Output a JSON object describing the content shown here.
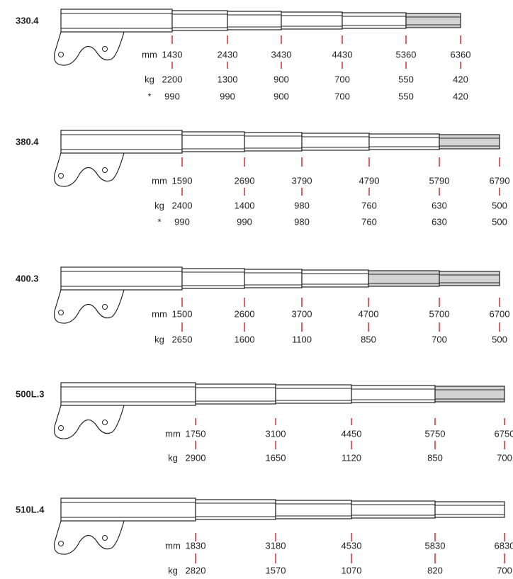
{
  "diagrams": [
    {
      "model": "330.4",
      "units": [
        "mm",
        "kg",
        "*"
      ],
      "rows": [
        [
          1430,
          2430,
          3430,
          4430,
          5360,
          6360
        ],
        [
          2200,
          1300,
          900,
          700,
          550,
          420
        ],
        [
          990,
          990,
          900,
          700,
          550,
          420
        ]
      ]
    },
    {
      "model": "380.4",
      "units": [
        "mm",
        "kg",
        "*"
      ],
      "rows": [
        [
          1590,
          2690,
          3790,
          4790,
          5790,
          6790
        ],
        [
          2400,
          1400,
          980,
          760,
          630,
          500
        ],
        [
          990,
          990,
          980,
          760,
          630,
          500
        ]
      ]
    },
    {
      "model": "400.3",
      "units": [
        "mm",
        "kg"
      ],
      "rows": [
        [
          1500,
          2600,
          3700,
          4700,
          5700,
          6700
        ],
        [
          2650,
          1600,
          1100,
          850,
          700,
          500
        ]
      ]
    },
    {
      "model": "500L.3",
      "units": [
        "mm",
        "kg"
      ],
      "rows": [
        [
          1750,
          3100,
          4450,
          5750,
          6750
        ],
        [
          2900,
          1650,
          1120,
          850,
          700
        ]
      ]
    },
    {
      "model": "510L.4",
      "units": [
        "mm",
        "kg"
      ],
      "rows": [
        [
          1830,
          3180,
          4530,
          5830,
          6830
        ],
        [
          2820,
          1570,
          1070,
          820,
          700
        ]
      ]
    }
  ]
}
